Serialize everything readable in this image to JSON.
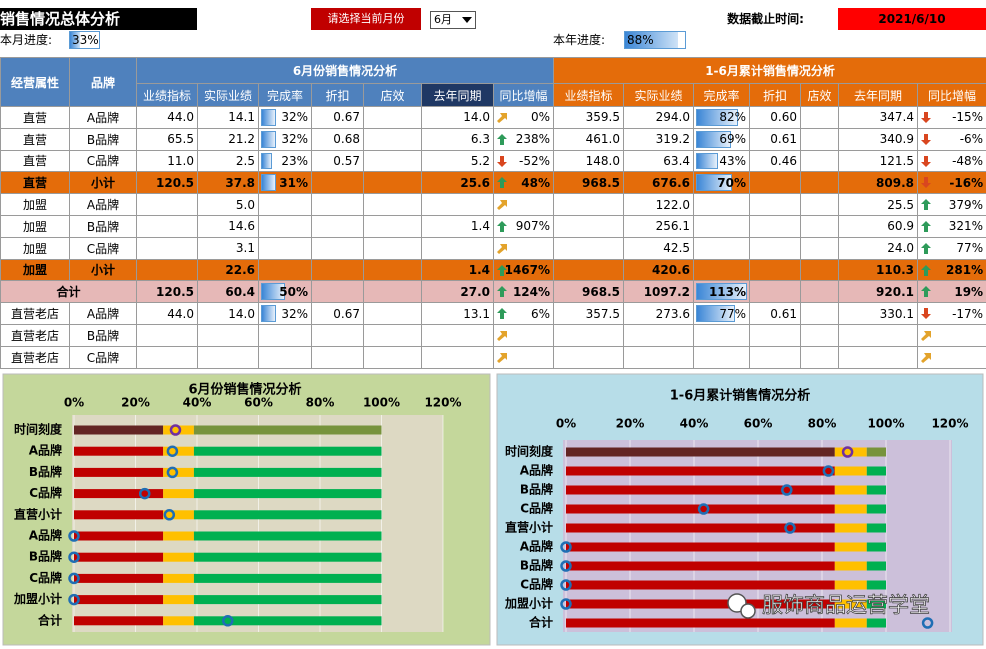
{
  "header": {
    "title": "销售情况总体分析",
    "month_prompt": "请选择当前月份",
    "month": "6月",
    "cutoff_label": "数据截止时间:",
    "cutoff_date": "2021/6/10",
    "month_progress_label": "本月进度:",
    "month_progress": {
      "value": 33,
      "label": "33%"
    },
    "year_progress_label": "本年进度:",
    "year_progress": {
      "value": 88,
      "label": "88%"
    }
  },
  "table": {
    "group_headers": [
      "经营属性",
      "品牌",
      "6月份销售情况分析",
      "1-6月累计销售情况分析"
    ],
    "columns": [
      "业绩指标",
      "实际业绩",
      "完成率",
      "折扣",
      "店效",
      "去年同期",
      "同比增幅",
      "业绩指标",
      "实际业绩",
      "完成率",
      "折扣",
      "店效",
      "去年同期",
      "同比增幅"
    ],
    "rows": [
      [
        "直营",
        "A品牌",
        "44.0",
        "14.1",
        {
          "value": 32,
          "label": "32%"
        },
        "0.67",
        null,
        "14.0",
        "0%",
        "359.5",
        "294.0",
        {
          "value": 82,
          "label": "82%"
        },
        "0.60",
        null,
        "347.4",
        "-15%"
      ],
      [
        "直营",
        "B品牌",
        "65.5",
        "21.2",
        {
          "value": 32,
          "label": "32%"
        },
        "0.68",
        null,
        "6.3",
        "238%",
        "461.0",
        "319.2",
        {
          "value": 69,
          "label": "69%"
        },
        "0.61",
        null,
        "340.9",
        "-6%"
      ],
      [
        "直营",
        "C品牌",
        "11.0",
        "2.5",
        {
          "value": 23,
          "label": "23%"
        },
        "0.57",
        null,
        "5.2",
        "-52%",
        "148.0",
        "63.4",
        {
          "value": 43,
          "label": "43%"
        },
        "0.46",
        null,
        "121.5",
        "-48%"
      ],
      [
        "直营",
        "小计",
        "120.5",
        "37.8",
        {
          "value": 31,
          "label": "31%"
        },
        null,
        null,
        "25.6",
        "48%",
        "968.5",
        "676.6",
        {
          "value": 70,
          "label": "70%"
        },
        null,
        null,
        "809.8",
        "-16%"
      ],
      [
        "加盟",
        "A品牌",
        null,
        "5.0",
        null,
        null,
        null,
        null,
        null,
        null,
        "122.0",
        null,
        null,
        null,
        "25.5",
        "379%"
      ],
      [
        "加盟",
        "B品牌",
        null,
        "14.6",
        null,
        null,
        null,
        "1.4",
        "907%",
        null,
        "256.1",
        null,
        null,
        null,
        "60.9",
        "321%"
      ],
      [
        "加盟",
        "C品牌",
        null,
        "3.1",
        null,
        null,
        null,
        null,
        null,
        null,
        "42.5",
        null,
        null,
        null,
        "24.0",
        "77%"
      ],
      [
        "加盟",
        "小计",
        null,
        "22.6",
        null,
        null,
        null,
        "1.4",
        "1467%",
        null,
        "420.6",
        null,
        null,
        null,
        "110.3",
        "281%"
      ],
      [
        "合计",
        null,
        "120.5",
        "60.4",
        {
          "value": 50,
          "label": "50%"
        },
        null,
        null,
        "27.0",
        "124%",
        "968.5",
        "1097.2",
        {
          "value": 113,
          "label": "113%"
        },
        null,
        null,
        "920.1",
        "19%"
      ],
      [
        "直营老店",
        "A品牌",
        "44.0",
        "14.0",
        {
          "value": 32,
          "label": "32%"
        },
        "0.67",
        null,
        "13.1",
        "6%",
        "357.5",
        "273.6",
        {
          "value": 77,
          "label": "77%"
        },
        "0.61",
        null,
        "330.1",
        "-17%"
      ],
      [
        "直营老店",
        "B品牌",
        null,
        null,
        null,
        null,
        null,
        null,
        null,
        null,
        null,
        null,
        null,
        null,
        null,
        null
      ],
      [
        "直营老店",
        "C品牌",
        null,
        null,
        null,
        null,
        null,
        null,
        null,
        null,
        null,
        null,
        null,
        null,
        null,
        null
      ]
    ]
  },
  "chart_data": [
    {
      "type": "bar",
      "title": "6月份销售情况分析",
      "categories": [
        "时间刻度",
        "A品牌",
        "B品牌",
        "C品牌",
        "直营小计",
        "A品牌",
        "B品牌",
        "C品牌",
        "加盟小计",
        "合计"
      ],
      "values": [
        33,
        32,
        32,
        23,
        31,
        0,
        0,
        0,
        0,
        50
      ],
      "xlim": [
        0,
        120
      ],
      "xticks": [
        {
          "value": 0,
          "label": "0%"
        },
        {
          "value": 20,
          "label": "20%"
        },
        {
          "value": 40,
          "label": "40%"
        },
        {
          "value": 60,
          "label": "60%"
        },
        {
          "value": 80,
          "label": "80%"
        },
        {
          "value": 100,
          "label": "100%"
        },
        {
          "value": 120,
          "label": "120%"
        }
      ],
      "zones": [
        29,
        10,
        61
      ],
      "zone_colors": [
        "#c00000",
        "#ffc000",
        "#00b050"
      ],
      "time_colors": [
        "#632523",
        "#ffc000",
        "#77933c"
      ],
      "marker_color": "#1f6eb4",
      "time_marker_color": "#7030a0"
    },
    {
      "type": "bar",
      "title": "1-6月累计销售情况分析",
      "categories": [
        "时间刻度",
        "A品牌",
        "B品牌",
        "C品牌",
        "直营小计",
        "A品牌",
        "B品牌",
        "C品牌",
        "加盟小计",
        "合计"
      ],
      "values": [
        88,
        82,
        69,
        43,
        70,
        0,
        0,
        0,
        0,
        113
      ],
      "xlim": [
        0,
        120
      ],
      "xticks": [
        {
          "value": 0,
          "label": "0%"
        },
        {
          "value": 20,
          "label": "20%"
        },
        {
          "value": 40,
          "label": "40%"
        },
        {
          "value": 60,
          "label": "60%"
        },
        {
          "value": 80,
          "label": "80%"
        },
        {
          "value": 100,
          "label": "100%"
        },
        {
          "value": 120,
          "label": "120%"
        }
      ],
      "zones": [
        84,
        10,
        6
      ],
      "zone_colors": [
        "#c00000",
        "#ffc000",
        "#00b050"
      ],
      "time_colors": [
        "#632523",
        "#ffc000",
        "#77933c"
      ],
      "marker_color": "#1f6eb4",
      "time_marker_color": "#7030a0"
    }
  ],
  "watermark": "服饰商品运营学堂"
}
